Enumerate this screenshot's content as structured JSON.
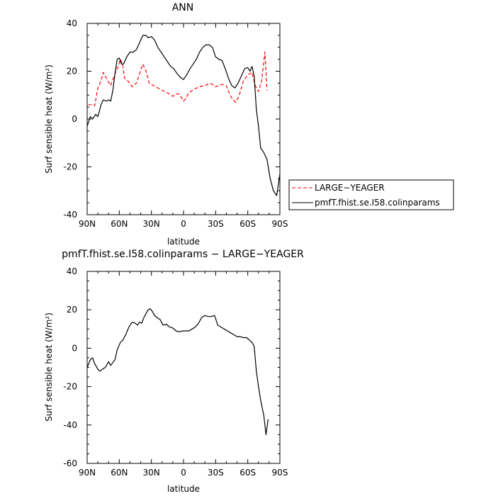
{
  "chart_data": [
    {
      "type": "line",
      "title": "ANN",
      "xlabel": "latitude",
      "ylabel": "Surf sensible heat (W/m²)",
      "xlim": [
        -90,
        90
      ],
      "ylim": [
        -40,
        40
      ],
      "x_tick_values": [
        -90,
        -60,
        -30,
        0,
        30,
        60,
        90
      ],
      "x_tick_labels": [
        "90N",
        "60N",
        "30N",
        "0",
        "30S",
        "60S",
        "90S"
      ],
      "y_ticks": [
        -40,
        -20,
        0,
        20,
        40
      ],
      "grid": false,
      "legend_position": "right",
      "series": [
        {
          "name": "LARGE−YEAGER",
          "color": "#ff0000",
          "style": "dashed",
          "x": [
            -89,
            -85,
            -83,
            -80,
            -77,
            -75,
            -72,
            -68,
            -64,
            -61,
            -59,
            -57,
            -55,
            -52,
            -48,
            -44,
            -41,
            -38,
            -35,
            -32,
            -28,
            -24,
            -20,
            -15,
            -10,
            -7,
            -4,
            -2,
            0,
            2,
            5,
            10,
            15,
            20,
            25,
            30,
            33,
            36,
            40,
            43,
            46,
            49,
            52,
            56,
            60,
            64,
            67,
            70,
            73,
            76,
            78
          ],
          "y": [
            6,
            6,
            5.5,
            13,
            16,
            19.5,
            17,
            14,
            19,
            22,
            25,
            23,
            17,
            16,
            13.5,
            15,
            19,
            23,
            20,
            15,
            14,
            13,
            12,
            11,
            9.5,
            10.5,
            10.5,
            9,
            7.5,
            8.5,
            11,
            12.5,
            13.5,
            14,
            15,
            13.5,
            14,
            14.5,
            14,
            10.5,
            8,
            7,
            10,
            16,
            18.5,
            19.5,
            14,
            11.5,
            16,
            28,
            12
          ]
        },
        {
          "name": "pmfT.fhist.se.I58.colinparams",
          "color": "#000000",
          "style": "solid",
          "x": [
            -90,
            -87,
            -85,
            -82,
            -80,
            -77,
            -75,
            -72,
            -70,
            -68,
            -66,
            -64,
            -62,
            -60,
            -58,
            -56,
            -53,
            -50,
            -47,
            -44,
            -41,
            -38,
            -35,
            -33,
            -30,
            -27,
            -24,
            -21,
            -18,
            -15,
            -12,
            -9,
            -6,
            -3,
            0,
            3,
            6,
            9,
            12,
            15,
            18,
            21,
            24,
            27,
            30,
            33,
            36,
            39,
            42,
            45,
            48,
            51,
            54,
            57,
            60,
            62,
            64,
            66,
            68,
            70,
            72,
            75,
            78,
            81,
            84,
            87,
            90
          ],
          "y": [
            -3,
            1,
            0,
            2,
            1,
            6,
            8,
            7.5,
            8,
            7.5,
            12,
            19,
            25,
            25.5,
            23,
            23,
            26,
            28,
            28,
            29,
            32,
            35,
            35,
            34,
            34.5,
            33,
            30,
            28,
            26,
            24,
            22,
            21,
            19,
            17.5,
            16.5,
            18.5,
            21,
            23,
            25,
            28,
            30,
            31,
            31,
            30,
            26,
            25,
            24.5,
            21,
            17,
            14,
            13,
            15,
            18,
            21,
            21.5,
            20,
            22,
            18,
            4,
            -3,
            -12,
            -14,
            -17,
            -25,
            -30,
            -32,
            -23
          ]
        }
      ]
    },
    {
      "type": "line",
      "title": "pmfT.fhist.se.I58.colinparams − LARGE−YEAGER",
      "xlabel": "latitude",
      "ylabel": "Surf sensible heat (W/m²)",
      "xlim": [
        -90,
        90
      ],
      "ylim": [
        -60,
        40
      ],
      "x_tick_values": [
        -90,
        -60,
        -30,
        0,
        30,
        60,
        90
      ],
      "x_tick_labels": [
        "90N",
        "60N",
        "30N",
        "0",
        "30S",
        "60S",
        "90S"
      ],
      "y_ticks": [
        -60,
        -40,
        -20,
        0,
        20,
        40
      ],
      "grid": false,
      "series": [
        {
          "color": "#000000",
          "style": "solid",
          "x": [
            -90,
            -87,
            -85,
            -83,
            -80,
            -78,
            -76,
            -73,
            -70,
            -68,
            -66,
            -64,
            -62,
            -59,
            -57,
            -54,
            -51,
            -48,
            -45,
            -43,
            -41,
            -39,
            -37,
            -35,
            -33,
            -31,
            -29,
            -27,
            -25,
            -22,
            -19,
            -16,
            -13,
            -10,
            -7,
            -4,
            -1,
            2,
            5,
            8,
            11,
            14,
            17,
            20,
            23,
            26,
            29,
            32,
            35,
            38,
            41,
            44,
            47,
            50,
            53,
            56,
            59,
            62,
            64,
            66,
            68,
            70,
            72,
            75,
            77,
            79
          ],
          "y": [
            -10,
            -6,
            -5,
            -8,
            -11,
            -12,
            -11,
            -10,
            -7,
            -9,
            -7.5,
            -6,
            -1,
            3,
            4,
            7,
            11,
            13.5,
            13,
            12,
            13.5,
            13,
            16,
            18,
            20,
            20.5,
            19,
            17,
            16,
            15,
            12,
            12.5,
            11,
            10.5,
            9,
            8.5,
            9,
            9,
            9,
            10,
            11,
            13,
            16,
            17,
            16.5,
            16.5,
            17,
            12,
            11,
            10,
            9,
            8,
            7,
            6,
            6,
            5.5,
            5.5,
            4,
            3,
            1,
            -12,
            -20,
            -27,
            -35,
            -45,
            -37
          ]
        }
      ]
    }
  ]
}
